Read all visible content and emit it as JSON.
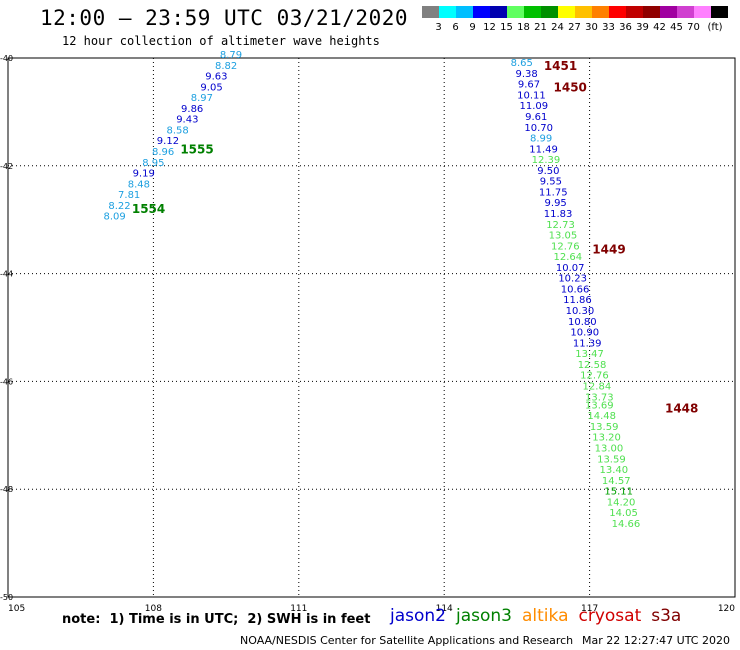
{
  "header": {
    "title": "12:00 — 23:59 UTC 03/21/2020",
    "subtitle": "12 hour collection of altimeter wave heights"
  },
  "colorbar": {
    "swatches": [
      "#808080",
      "#00ffff",
      "#00bfff",
      "#0000ff",
      "#0000b0",
      "#60ff60",
      "#00c000",
      "#009000",
      "#ffff00",
      "#ffc000",
      "#ff8000",
      "#ff0000",
      "#c00000",
      "#900000",
      "#a000a0",
      "#d040d0",
      "#ff80ff",
      "#000000"
    ],
    "labels": [
      "3",
      "6",
      "9",
      "12",
      "15",
      "18",
      "21",
      "24",
      "27",
      "30",
      "33",
      "36",
      "39",
      "42",
      "45",
      "70",
      "(ft)"
    ]
  },
  "chart_data": {
    "type": "scatter",
    "xlim": [
      105,
      120
    ],
    "ylim": [
      -50,
      -40
    ],
    "x_ticks": [
      "105",
      "108",
      "111",
      "114",
      "117",
      "120"
    ],
    "y_ticks": [
      "-40",
      "-42",
      "-44",
      "-46",
      "-48",
      "-50"
    ],
    "grid": "dotted",
    "series": [
      {
        "name": "jason2",
        "color": "#0000cc",
        "points": [
          {
            "lon": 109.6,
            "lat": -40.0,
            "swh": 8.79
          },
          {
            "lon": 109.5,
            "lat": -40.2,
            "swh": 8.82
          },
          {
            "lon": 109.3,
            "lat": -40.4,
            "swh": 9.63
          },
          {
            "lon": 109.2,
            "lat": -40.6,
            "swh": 9.05
          },
          {
            "lon": 109.0,
            "lat": -40.8,
            "swh": 8.97
          },
          {
            "lon": 108.8,
            "lat": -41.0,
            "swh": 9.86
          },
          {
            "lon": 108.7,
            "lat": -41.2,
            "swh": 9.43
          },
          {
            "lon": 108.5,
            "lat": -41.4,
            "swh": 8.58
          },
          {
            "lon": 108.3,
            "lat": -41.6,
            "swh": 9.12
          },
          {
            "lon": 108.2,
            "lat": -41.8,
            "swh": 8.96
          },
          {
            "lon": 108.0,
            "lat": -42.0,
            "swh": 8.95
          },
          {
            "lon": 107.8,
            "lat": -42.2,
            "swh": 9.19
          },
          {
            "lon": 107.7,
            "lat": -42.4,
            "swh": 8.48
          },
          {
            "lon": 107.5,
            "lat": -42.6,
            "swh": 7.81
          },
          {
            "lon": 107.3,
            "lat": -42.8,
            "swh": 8.22
          },
          {
            "lon": 107.2,
            "lat": -43.0,
            "swh": 8.09
          }
        ]
      },
      {
        "name": "jason3",
        "color": "#008000",
        "points": []
      },
      {
        "name": "altika",
        "color": "#ff8c00",
        "points": []
      },
      {
        "name": "cryosat",
        "color": "#d00000",
        "points": []
      },
      {
        "name": "s3a",
        "color": "#800000",
        "points": [
          {
            "lon": 115.6,
            "lat": -40.15,
            "swh": 8.65
          },
          {
            "lon": 115.7,
            "lat": -40.35,
            "swh": 9.38
          },
          {
            "lon": 115.75,
            "lat": -40.55,
            "swh": 9.67
          },
          {
            "lon": 115.8,
            "lat": -40.75,
            "swh": 10.11
          },
          {
            "lon": 115.85,
            "lat": -40.95,
            "swh": 11.09
          },
          {
            "lon": 115.9,
            "lat": -41.15,
            "swh": 9.61
          },
          {
            "lon": 115.95,
            "lat": -41.35,
            "swh": 10.7
          },
          {
            "lon": 116.0,
            "lat": -41.55,
            "swh": 8.99
          },
          {
            "lon": 116.05,
            "lat": -41.75,
            "swh": 11.49
          },
          {
            "lon": 116.1,
            "lat": -41.95,
            "swh": 12.39
          },
          {
            "lon": 116.15,
            "lat": -42.15,
            "swh": 9.5
          },
          {
            "lon": 116.2,
            "lat": -42.35,
            "swh": 9.55
          },
          {
            "lon": 116.25,
            "lat": -42.55,
            "swh": 11.75
          },
          {
            "lon": 116.3,
            "lat": -42.75,
            "swh": 9.95
          },
          {
            "lon": 116.35,
            "lat": -42.95,
            "swh": 11.83
          },
          {
            "lon": 116.4,
            "lat": -43.15,
            "swh": 12.73
          },
          {
            "lon": 116.45,
            "lat": -43.35,
            "swh": 13.05
          },
          {
            "lon": 116.5,
            "lat": -43.55,
            "swh": 12.76
          },
          {
            "lon": 116.55,
            "lat": -43.75,
            "swh": 12.64
          },
          {
            "lon": 116.6,
            "lat": -43.95,
            "swh": 10.07
          },
          {
            "lon": 116.65,
            "lat": -44.15,
            "swh": 10.23
          },
          {
            "lon": 116.7,
            "lat": -44.35,
            "swh": 10.66
          },
          {
            "lon": 116.75,
            "lat": -44.55,
            "swh": 11.86
          },
          {
            "lon": 116.8,
            "lat": -44.75,
            "swh": 10.3
          },
          {
            "lon": 116.85,
            "lat": -44.95,
            "swh": 10.8
          },
          {
            "lon": 116.9,
            "lat": -45.15,
            "swh": 10.9
          },
          {
            "lon": 116.95,
            "lat": -45.35,
            "swh": 11.39
          },
          {
            "lon": 117.0,
            "lat": -45.55,
            "swh": 13.47
          },
          {
            "lon": 117.05,
            "lat": -45.75,
            "swh": 12.58
          },
          {
            "lon": 117.1,
            "lat": -45.95,
            "swh": 12.76
          },
          {
            "lon": 117.15,
            "lat": -46.15,
            "swh": 12.84
          },
          {
            "lon": 117.2,
            "lat": -46.35,
            "swh": 13.73
          },
          {
            "lon": 117.2,
            "lat": -46.5,
            "swh": 13.69
          },
          {
            "lon": 117.25,
            "lat": -46.7,
            "swh": 14.48
          },
          {
            "lon": 117.3,
            "lat": -46.9,
            "swh": 13.59
          },
          {
            "lon": 117.35,
            "lat": -47.1,
            "swh": 13.2
          },
          {
            "lon": 117.4,
            "lat": -47.3,
            "swh": 13.0
          },
          {
            "lon": 117.45,
            "lat": -47.5,
            "swh": 13.59
          },
          {
            "lon": 117.5,
            "lat": -47.7,
            "swh": 13.4
          },
          {
            "lon": 117.55,
            "lat": -47.9,
            "swh": 14.57
          },
          {
            "lon": 117.6,
            "lat": -48.1,
            "swh": 15.11
          },
          {
            "lon": 117.65,
            "lat": -48.3,
            "swh": 14.2
          },
          {
            "lon": 117.7,
            "lat": -48.5,
            "swh": 14.05
          },
          {
            "lon": 117.75,
            "lat": -48.7,
            "swh": 14.66
          }
        ]
      }
    ],
    "time_labels": [
      {
        "text": "1451",
        "lon": 116.4,
        "lat": -40.15,
        "color": "#800000"
      },
      {
        "text": "1450",
        "lon": 116.6,
        "lat": -40.55,
        "color": "#800000"
      },
      {
        "text": "1449",
        "lon": 117.4,
        "lat": -43.55,
        "color": "#800000"
      },
      {
        "text": "1448",
        "lon": 118.9,
        "lat": -46.5,
        "color": "#800000"
      },
      {
        "text": "1555",
        "lon": 108.9,
        "lat": -41.7,
        "color": "#008000"
      },
      {
        "text": "1554",
        "lon": 107.9,
        "lat": -42.8,
        "color": "#008000"
      }
    ]
  },
  "footer": {
    "note": "note:  1) Time is in UTC;  2) SWH is in feet",
    "satellites": [
      {
        "label": "jason2",
        "color": "#0000cc"
      },
      {
        "label": "jason3",
        "color": "#008000"
      },
      {
        "label": "altika",
        "color": "#ff8c00"
      },
      {
        "label": "cryosat",
        "color": "#d00000"
      },
      {
        "label": "s3a",
        "color": "#800000"
      }
    ],
    "credit": "NOAA/NESDIS Center for Satellite Applications and Research",
    "timestamp": "Mar 22 12:27:47 UTC 2020"
  }
}
